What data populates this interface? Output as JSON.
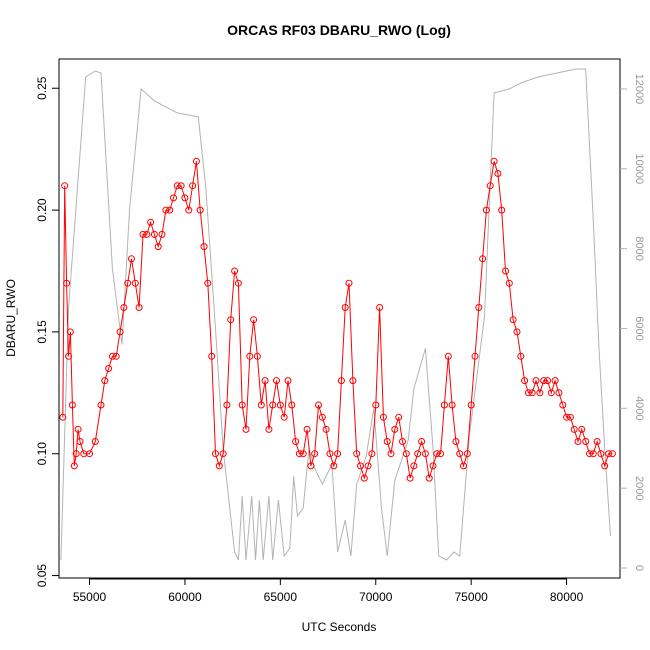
{
  "chart_data": {
    "type": "line",
    "title": "ORCAS RF03 DBARU_RWO (Log)",
    "xlabel": "UTC Seconds",
    "ylabel": "DBARU_RWO",
    "xlim": [
      53400,
      82800
    ],
    "ylim": [
      0.049,
      0.262
    ],
    "y2lim": [
      -250,
      12750
    ],
    "x_ticks": [
      55000,
      60000,
      65000,
      70000,
      75000,
      80000
    ],
    "y_ticks": [
      0.05,
      0.1,
      0.15,
      0.2,
      0.25
    ],
    "y2_ticks": [
      0,
      2000,
      4000,
      6000,
      8000,
      10000,
      12000
    ],
    "y2_ticks_rotated": true,
    "grid": false,
    "legend": "none",
    "colors": {
      "primary": "#ff0000",
      "secondary": "#b3b3b3",
      "axis": "#000000"
    },
    "series": [
      {
        "axis": "left",
        "style": "points-with-vertical-lines",
        "x": [
          53600,
          53700,
          53800,
          53900,
          54000,
          54100,
          54200,
          54300,
          54400,
          54500,
          54700,
          55000,
          55300,
          55600,
          55800,
          56000,
          56200,
          56400,
          56600,
          56800,
          57000,
          57200,
          57400,
          57600,
          57800,
          58000,
          58200,
          58400,
          58600,
          58800,
          59000,
          59200,
          59400,
          59600,
          59800,
          60000,
          60200,
          60400,
          60600,
          60800,
          61000,
          61200,
          61400,
          61600,
          61800,
          62000,
          62200,
          62400,
          62600,
          62800,
          63000,
          63200,
          63400,
          63600,
          63800,
          64000,
          64200,
          64400,
          64600,
          64800,
          65000,
          65200,
          65400,
          65600,
          65800,
          66000,
          66200,
          66400,
          66600,
          66800,
          67000,
          67200,
          67400,
          67600,
          67800,
          68000,
          68200,
          68400,
          68600,
          68800,
          69000,
          69200,
          69400,
          69600,
          69800,
          70000,
          70200,
          70400,
          70600,
          70800,
          71000,
          71200,
          71400,
          71600,
          71800,
          72000,
          72200,
          72400,
          72600,
          72800,
          73000,
          73200,
          73400,
          73600,
          73800,
          74000,
          74200,
          74400,
          74600,
          74800,
          75000,
          75200,
          75400,
          75600,
          75800,
          76000,
          76200,
          76400,
          76600,
          76800,
          77000,
          77200,
          77400,
          77600,
          77800,
          78000,
          78200,
          78400,
          78600,
          78800,
          79000,
          79200,
          79400,
          79600,
          79800,
          80000,
          80200,
          80400,
          80600,
          80800,
          81000,
          81200,
          81400,
          81600,
          81800,
          82000,
          82200,
          82400
        ],
        "y": [
          0.115,
          0.21,
          0.17,
          0.14,
          0.15,
          0.12,
          0.095,
          0.1,
          0.11,
          0.105,
          0.1,
          0.1,
          0.105,
          0.12,
          0.13,
          0.135,
          0.14,
          0.14,
          0.15,
          0.16,
          0.17,
          0.18,
          0.17,
          0.16,
          0.19,
          0.19,
          0.195,
          0.19,
          0.185,
          0.19,
          0.2,
          0.2,
          0.205,
          0.21,
          0.21,
          0.205,
          0.2,
          0.21,
          0.22,
          0.2,
          0.185,
          0.17,
          0.14,
          0.1,
          0.095,
          0.1,
          0.12,
          0.155,
          0.175,
          0.17,
          0.12,
          0.11,
          0.14,
          0.155,
          0.14,
          0.12,
          0.13,
          0.11,
          0.12,
          0.13,
          0.12,
          0.115,
          0.13,
          0.12,
          0.105,
          0.1,
          0.1,
          0.11,
          0.095,
          0.1,
          0.12,
          0.115,
          0.11,
          0.1,
          0.095,
          0.1,
          0.13,
          0.16,
          0.17,
          0.13,
          0.1,
          0.095,
          0.09,
          0.095,
          0.1,
          0.12,
          0.16,
          0.115,
          0.105,
          0.1,
          0.11,
          0.115,
          0.105,
          0.1,
          0.09,
          0.095,
          0.1,
          0.105,
          0.1,
          0.09,
          0.095,
          0.1,
          0.1,
          0.12,
          0.14,
          0.12,
          0.105,
          0.1,
          0.095,
          0.1,
          0.12,
          0.14,
          0.16,
          0.18,
          0.2,
          0.21,
          0.22,
          0.215,
          0.2,
          0.175,
          0.17,
          0.155,
          0.15,
          0.14,
          0.13,
          0.125,
          0.125,
          0.13,
          0.125,
          0.13,
          0.13,
          0.125,
          0.13,
          0.125,
          0.12,
          0.115,
          0.115,
          0.11,
          0.105,
          0.11,
          0.105,
          0.1,
          0.1,
          0.105,
          0.1,
          0.095,
          0.1,
          0.1
        ]
      },
      {
        "axis": "right",
        "style": "line",
        "x": [
          53500,
          53900,
          54800,
          55300,
          55600,
          56200,
          56700,
          57100,
          57700,
          58400,
          59600,
          60700,
          61100,
          61600,
          62000,
          62600,
          62800,
          63000,
          63200,
          63500,
          63700,
          63900,
          64100,
          64400,
          64600,
          64900,
          65200,
          65500,
          65700,
          65900,
          66200,
          66500,
          66800,
          67200,
          67700,
          68000,
          68400,
          68700,
          69000,
          69500,
          69900,
          70300,
          70600,
          71000,
          71700,
          72000,
          72600,
          73000,
          73300,
          73700,
          74100,
          74400,
          74900,
          75700,
          76200,
          77000,
          77600,
          78500,
          79500,
          80500,
          81000,
          81400,
          81700,
          82000,
          82300
        ],
        "y": [
          200,
          6500,
          12300,
          12450,
          12400,
          7500,
          5600,
          9000,
          12000,
          11700,
          11400,
          11300,
          9500,
          6000,
          3000,
          400,
          200,
          1800,
          200,
          1800,
          200,
          1700,
          200,
          1800,
          200,
          1700,
          300,
          500,
          2300,
          1300,
          1500,
          3000,
          2500,
          2100,
          2600,
          400,
          1200,
          300,
          2100,
          2800,
          4000,
          1500,
          300,
          2200,
          3200,
          4500,
          5500,
          3000,
          300,
          200,
          400,
          300,
          3300,
          6300,
          11900,
          12000,
          12150,
          12300,
          12400,
          12500,
          12500,
          8700,
          5500,
          3000,
          800
        ]
      }
    ]
  }
}
